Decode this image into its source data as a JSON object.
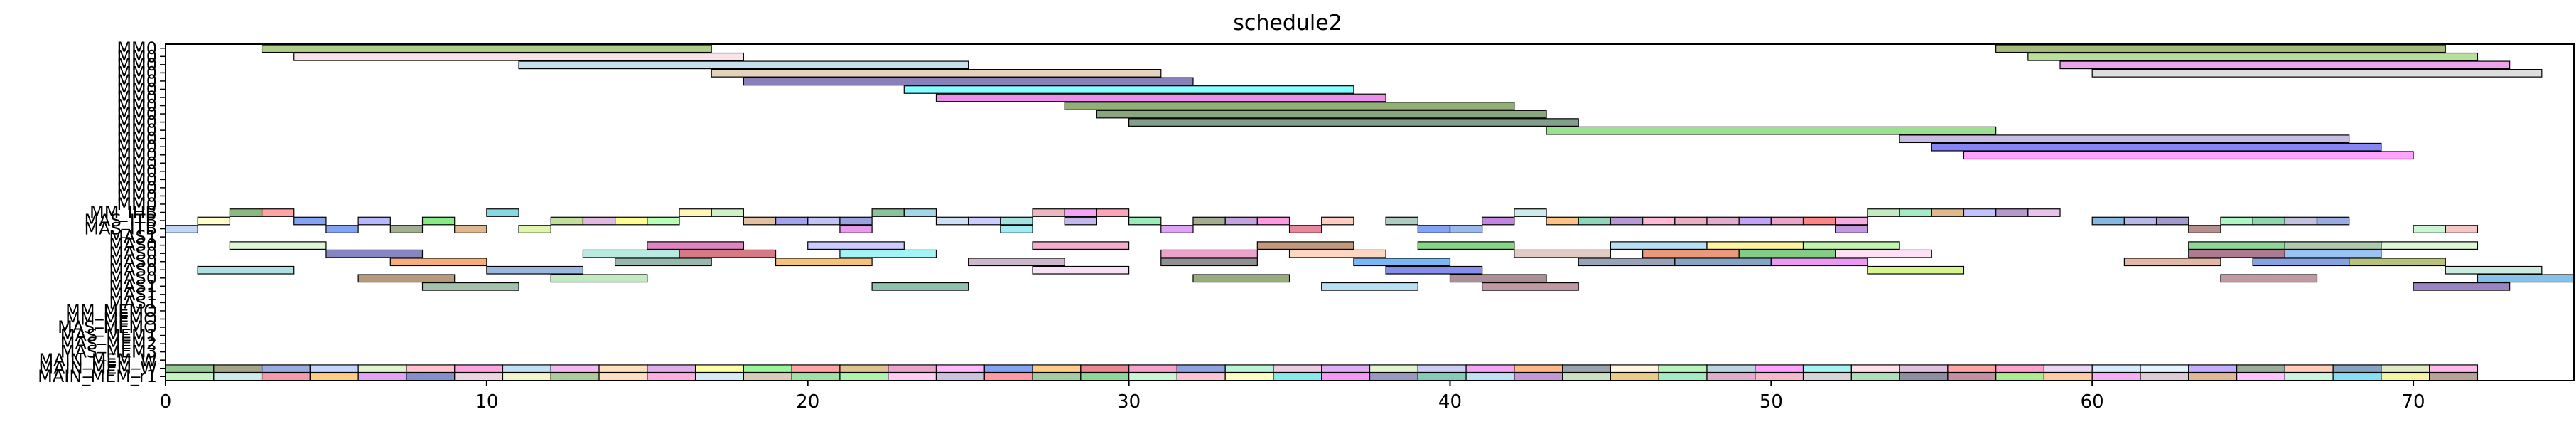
{
  "chart_data": {
    "type": "gantt",
    "title": "schedule2",
    "xlabel": "",
    "ylabel": "",
    "xlim": [
      0,
      75
    ],
    "xticks": [
      "0",
      "10",
      "20",
      "30",
      "40",
      "50",
      "60",
      "70"
    ],
    "grid": false,
    "rows": [
      "MM0",
      "MM0",
      "MM0",
      "MM0",
      "MM0",
      "MM0",
      "MM0",
      "MM0",
      "MM0",
      "MM0",
      "MM0",
      "MM0",
      "MM0",
      "MM0",
      "MM0",
      "MM0",
      "MM0",
      "MM0",
      "MM0",
      "MM0",
      "MM_IHB",
      "MAS_ITB",
      "MAS_ITB",
      "MAS1",
      "MAS0",
      "MAS0",
      "MAS0",
      "MAS0",
      "MAS0",
      "MAS1",
      "MAS1",
      "MAS1",
      "MM_MEMO",
      "MM_MEMO",
      "MAS_MEMO",
      "MAS_MEM1",
      "MAS_MEM2",
      "MAS_MEM3",
      "MAIN_MEM_W",
      "MAIN_MEM_W",
      "MAIN_MEM_r1"
    ],
    "ytick_labels": [
      "MM0",
      "MM0",
      "MM0",
      "MM0",
      "MM0",
      "MM0",
      "MM0",
      "MM0",
      "MM0",
      "MM0",
      "MM0",
      "MM0",
      "MM0",
      "MM0",
      "MM0",
      "MM0",
      "MM0",
      "MM0",
      "MM0",
      "MM0",
      "MM_IHB",
      "MAS_ITB",
      "MAS_ITB",
      "MAS1",
      "MAS0",
      "MAS0",
      "MAS0",
      "MAS0",
      "MAS0",
      "MAS1",
      "MAS1",
      "MAS1",
      "MM_MEMO",
      "MM_MEMO",
      "MAS_MEMO",
      "MAS_MEM1",
      "MAS_MEM2",
      "MAS_MEM3",
      "MAIN_MEM_W",
      "MAIN_MEM_W",
      "MAIN_MEM_r1"
    ],
    "bars": [
      {
        "row": 0,
        "start": 3,
        "end": 17,
        "color": "#7aaa3a"
      },
      {
        "row": 0,
        "start": 57,
        "end": 71,
        "color": "#6b8e23"
      },
      {
        "row": 1,
        "start": 4,
        "end": 18,
        "color": "#f5d0d8"
      },
      {
        "row": 1,
        "start": 58,
        "end": 72,
        "color": "#88cc55"
      },
      {
        "row": 2,
        "start": 11,
        "end": 25,
        "color": "#9ecae1"
      },
      {
        "row": 2,
        "start": 59,
        "end": 73,
        "color": "#e066e0"
      },
      {
        "row": 3,
        "start": 17,
        "end": 31,
        "color": "#d2b48c"
      },
      {
        "row": 3,
        "start": 60,
        "end": 74,
        "color": "#c8c8c8"
      },
      {
        "row": 4,
        "start": 18,
        "end": 32,
        "color": "#3b2a8a"
      },
      {
        "row": 5,
        "start": 23,
        "end": 37,
        "color": "#33ffff"
      },
      {
        "row": 6,
        "start": 24,
        "end": 38,
        "color": "#dd44dd"
      },
      {
        "row": 7,
        "start": 28,
        "end": 42,
        "color": "#4a7a1e"
      },
      {
        "row": 8,
        "start": 29,
        "end": 43,
        "color": "#3d6b2a"
      },
      {
        "row": 9,
        "start": 30,
        "end": 44,
        "color": "#2f5f3f"
      },
      {
        "row": 10,
        "start": 43,
        "end": 57,
        "color": "#55cc44"
      },
      {
        "row": 11,
        "start": 54,
        "end": 68,
        "color": "#a58fd0"
      },
      {
        "row": 12,
        "start": 55,
        "end": 69,
        "color": "#3333ee"
      },
      {
        "row": 13,
        "start": 56,
        "end": 70,
        "color": "#ff66ff"
      },
      {
        "row": 20,
        "start": 2,
        "end": 3,
        "color": "#3a8a2a"
      },
      {
        "row": 20,
        "start": 3,
        "end": 4,
        "color": "#ff6666"
      },
      {
        "row": 20,
        "start": 10,
        "end": 11,
        "color": "#33c0d0"
      },
      {
        "row": 20,
        "start": 16,
        "end": 17,
        "color": "#ffee88"
      },
      {
        "row": 20,
        "start": 17,
        "end": 18,
        "color": "#b0e8a0"
      },
      {
        "row": 20,
        "start": 22,
        "end": 23,
        "color": "#3a9a5a"
      },
      {
        "row": 20,
        "start": 23,
        "end": 24,
        "color": "#66bbdd"
      },
      {
        "row": 20,
        "start": 27,
        "end": 28,
        "color": "#dd8899"
      },
      {
        "row": 20,
        "start": 28,
        "end": 29,
        "color": "#ee66ee"
      },
      {
        "row": 20,
        "start": 29,
        "end": 30,
        "color": "#ff6688"
      },
      {
        "row": 20,
        "start": 42,
        "end": 43,
        "color": "#aadddd"
      },
      {
        "row": 20,
        "start": 53,
        "end": 54,
        "color": "#99dd99"
      },
      {
        "row": 20,
        "start": 54,
        "end": 55,
        "color": "#66dd99"
      },
      {
        "row": 20,
        "start": 55,
        "end": 56,
        "color": "#cc8844"
      },
      {
        "row": 20,
        "start": 56,
        "end": 57,
        "color": "#9999ff"
      },
      {
        "row": 20,
        "start": 57,
        "end": 58,
        "color": "#8855aa"
      },
      {
        "row": 20,
        "start": 58,
        "end": 59,
        "color": "#dd99dd"
      },
      {
        "row": 21,
        "start": 1,
        "end": 2,
        "color": "#ffffaa"
      },
      {
        "row": 21,
        "start": 4,
        "end": 5,
        "color": "#3366ee"
      },
      {
        "row": 21,
        "start": 6,
        "end": 7,
        "color": "#8888ff"
      },
      {
        "row": 21,
        "start": 8,
        "end": 9,
        "color": "#33dd33"
      },
      {
        "row": 21,
        "start": 12,
        "end": 13,
        "color": "#99cc55"
      },
      {
        "row": 21,
        "start": 13,
        "end": 14,
        "color": "#cc88cc"
      },
      {
        "row": 21,
        "start": 14,
        "end": 15,
        "color": "#ffff44"
      },
      {
        "row": 21,
        "start": 15,
        "end": 16,
        "color": "#88ff88"
      },
      {
        "row": 21,
        "start": 18,
        "end": 19,
        "color": "#cc9966"
      },
      {
        "row": 21,
        "start": 19,
        "end": 20,
        "color": "#6666dd"
      },
      {
        "row": 21,
        "start": 20,
        "end": 21,
        "color": "#9999ee"
      },
      {
        "row": 21,
        "start": 21,
        "end": 22,
        "color": "#5566cc"
      },
      {
        "row": 21,
        "start": 24,
        "end": 25,
        "color": "#aaccee"
      },
      {
        "row": 21,
        "start": 25,
        "end": 26,
        "color": "#aaaaff"
      },
      {
        "row": 21,
        "start": 26,
        "end": 27,
        "color": "#66cccc"
      },
      {
        "row": 21,
        "start": 28,
        "end": 29,
        "color": "#9988dd"
      },
      {
        "row": 21,
        "start": 30,
        "end": 31,
        "color": "#55dd88"
      },
      {
        "row": 21,
        "start": 32,
        "end": 33,
        "color": "#667744"
      },
      {
        "row": 21,
        "start": 33,
        "end": 34,
        "color": "#9966cc"
      },
      {
        "row": 21,
        "start": 34,
        "end": 35,
        "color": "#ff55cc"
      },
      {
        "row": 21,
        "start": 36,
        "end": 37,
        "color": "#ffaa99"
      },
      {
        "row": 21,
        "start": 38,
        "end": 39,
        "color": "#77aa99"
      },
      {
        "row": 21,
        "start": 41,
        "end": 42,
        "color": "#9933cc"
      },
      {
        "row": 21,
        "start": 43,
        "end": 44,
        "color": "#ff9933"
      },
      {
        "row": 21,
        "start": 44,
        "end": 45,
        "color": "#44bb88"
      },
      {
        "row": 21,
        "start": 45,
        "end": 46,
        "color": "#8855bb"
      },
      {
        "row": 21,
        "start": 46,
        "end": 47,
        "color": "#ff88bb"
      },
      {
        "row": 21,
        "start": 47,
        "end": 48,
        "color": "#dd7799"
      },
      {
        "row": 21,
        "start": 48,
        "end": 49,
        "color": "#cc77aa"
      },
      {
        "row": 21,
        "start": 49,
        "end": 50,
        "color": "#9966ee"
      },
      {
        "row": 21,
        "start": 50,
        "end": 51,
        "color": "#dd66aa"
      },
      {
        "row": 21,
        "start": 51,
        "end": 52,
        "color": "#ff3333"
      },
      {
        "row": 21,
        "start": 52,
        "end": 53,
        "color": "#ee77cc"
      },
      {
        "row": 21,
        "start": 60,
        "end": 61,
        "color": "#3388cc"
      },
      {
        "row": 21,
        "start": 61,
        "end": 62,
        "color": "#8888dd"
      },
      {
        "row": 21,
        "start": 62,
        "end": 63,
        "color": "#6655aa"
      },
      {
        "row": 21,
        "start": 64,
        "end": 65,
        "color": "#77ee99"
      },
      {
        "row": 21,
        "start": 65,
        "end": 66,
        "color": "#44bb77"
      },
      {
        "row": 21,
        "start": 66,
        "end": 67,
        "color": "#9999cc"
      },
      {
        "row": 21,
        "start": 67,
        "end": 68,
        "color": "#5577cc"
      },
      {
        "row": 22,
        "start": 0,
        "end": 1,
        "color": "#99bbee"
      },
      {
        "row": 22,
        "start": 5,
        "end": 6,
        "color": "#3366ee"
      },
      {
        "row": 22,
        "start": 7,
        "end": 8,
        "color": "#667744"
      },
      {
        "row": 22,
        "start": 9,
        "end": 10,
        "color": "#cc8844"
      },
      {
        "row": 22,
        "start": 11,
        "end": 12,
        "color": "#ccee77"
      },
      {
        "row": 22,
        "start": 21,
        "end": 22,
        "color": "#dd55dd"
      },
      {
        "row": 22,
        "start": 26,
        "end": 27,
        "color": "#66ddee"
      },
      {
        "row": 22,
        "start": 31,
        "end": 32,
        "color": "#cc66ee"
      },
      {
        "row": 22,
        "start": 35,
        "end": 36,
        "color": "#dd3355"
      },
      {
        "row": 22,
        "start": 39,
        "end": 40,
        "color": "#3366ee"
      },
      {
        "row": 22,
        "start": 40,
        "end": 41,
        "color": "#5588dd"
      },
      {
        "row": 22,
        "start": 52,
        "end": 53,
        "color": "#9955cc"
      },
      {
        "row": 22,
        "start": 63,
        "end": 64,
        "color": "#884444"
      },
      {
        "row": 22,
        "start": 70,
        "end": 71,
        "color": "#aaeebb"
      },
      {
        "row": 22,
        "start": 71,
        "end": 72,
        "color": "#f2a0a0"
      },
      {
        "row": 24,
        "start": 2,
        "end": 5,
        "color": "#ccf2bb"
      },
      {
        "row": 24,
        "start": 15,
        "end": 18,
        "color": "#cc3399"
      },
      {
        "row": 24,
        "start": 20,
        "end": 23,
        "color": "#aaaaff"
      },
      {
        "row": 24,
        "start": 27,
        "end": 30,
        "color": "#ee77aa"
      },
      {
        "row": 24,
        "start": 34,
        "end": 37,
        "color": "#995522"
      },
      {
        "row": 24,
        "start": 39,
        "end": 42,
        "color": "#33bb33"
      },
      {
        "row": 24,
        "start": 45,
        "end": 48,
        "color": "#88ccee"
      },
      {
        "row": 24,
        "start": 48,
        "end": 51,
        "color": "#ffee55"
      },
      {
        "row": 24,
        "start": 51,
        "end": 54,
        "color": "#99ee77"
      },
      {
        "row": 24,
        "start": 63,
        "end": 66,
        "color": "#44bb55"
      },
      {
        "row": 24,
        "start": 66,
        "end": 69,
        "color": "#77aa77"
      },
      {
        "row": 24,
        "start": 69,
        "end": 72,
        "color": "#ccf2bb"
      },
      {
        "row": 25,
        "start": 5,
        "end": 8,
        "color": "#333399"
      },
      {
        "row": 25,
        "start": 13,
        "end": 16,
        "color": "#88ddcc"
      },
      {
        "row": 25,
        "start": 16,
        "end": 19,
        "color": "#bb2233"
      },
      {
        "row": 25,
        "start": 21,
        "end": 24,
        "color": "#66eeee"
      },
      {
        "row": 25,
        "start": 31,
        "end": 34,
        "color": "#dd66aa"
      },
      {
        "row": 25,
        "start": 35,
        "end": 38,
        "color": "#ffbb99"
      },
      {
        "row": 25,
        "start": 42,
        "end": 45,
        "color": "#ccaa99"
      },
      {
        "row": 25,
        "start": 46,
        "end": 49,
        "color": "#dd5522"
      },
      {
        "row": 25,
        "start": 49,
        "end": 52,
        "color": "#33aa33"
      },
      {
        "row": 25,
        "start": 52,
        "end": 55,
        "color": "#ffccee"
      },
      {
        "row": 25,
        "start": 63,
        "end": 66,
        "color": "#772244"
      },
      {
        "row": 25,
        "start": 66,
        "end": 69,
        "color": "#5599ee"
      },
      {
        "row": 26,
        "start": 7,
        "end": 10,
        "color": "#ee7722"
      },
      {
        "row": 26,
        "start": 14,
        "end": 17,
        "color": "#558877"
      },
      {
        "row": 26,
        "start": 19,
        "end": 22,
        "color": "#ee9922"
      },
      {
        "row": 26,
        "start": 25,
        "end": 28,
        "color": "#aa88aa"
      },
      {
        "row": 26,
        "start": 31,
        "end": 34,
        "color": "#444444"
      },
      {
        "row": 26,
        "start": 37,
        "end": 40,
        "color": "#2288ee"
      },
      {
        "row": 26,
        "start": 44,
        "end": 47,
        "color": "#556688"
      },
      {
        "row": 26,
        "start": 47,
        "end": 50,
        "color": "#336699"
      },
      {
        "row": 26,
        "start": 50,
        "end": 53,
        "color": "#dd55ee"
      },
      {
        "row": 26,
        "start": 61,
        "end": 64,
        "color": "#cc8866"
      },
      {
        "row": 26,
        "start": 65,
        "end": 68,
        "color": "#3366cc"
      },
      {
        "row": 26,
        "start": 68,
        "end": 71,
        "color": "#889922"
      },
      {
        "row": 27,
        "start": 1,
        "end": 4,
        "color": "#77cccc"
      },
      {
        "row": 27,
        "start": 10,
        "end": 13,
        "color": "#5588cc"
      },
      {
        "row": 27,
        "start": 27,
        "end": 30,
        "color": "#eeccee"
      },
      {
        "row": 27,
        "start": 38,
        "end": 41,
        "color": "#3344dd"
      },
      {
        "row": 27,
        "start": 53,
        "end": 56,
        "color": "#bbee44"
      },
      {
        "row": 27,
        "start": 71,
        "end": 74,
        "color": "#aaddcc"
      },
      {
        "row": 28,
        "start": 6,
        "end": 9,
        "color": "#885522"
      },
      {
        "row": 28,
        "start": 12,
        "end": 15,
        "color": "#99dd99"
      },
      {
        "row": 28,
        "start": 32,
        "end": 35,
        "color": "#557722"
      },
      {
        "row": 28,
        "start": 40,
        "end": 43,
        "color": "#774455"
      },
      {
        "row": 28,
        "start": 64,
        "end": 67,
        "color": "#995566"
      },
      {
        "row": 28,
        "start": 72,
        "end": 75,
        "color": "#3399dd"
      },
      {
        "row": 29,
        "start": 8,
        "end": 11,
        "color": "#669977"
      },
      {
        "row": 29,
        "start": 22,
        "end": 25,
        "color": "#449977"
      },
      {
        "row": 29,
        "start": 36,
        "end": 39,
        "color": "#88ccee"
      },
      {
        "row": 29,
        "start": 41,
        "end": 44,
        "color": "#995566"
      },
      {
        "row": 29,
        "start": 70,
        "end": 73,
        "color": "#553399"
      }
    ],
    "mem_rows": [
      {
        "row": 39,
        "colors": [
          "#4aa24a",
          "#666633",
          "#5577cc",
          "#99bbff",
          "#cceeaa",
          "#ff99aa",
          "#ff66cc",
          "#99ccee",
          "#ee88ee",
          "#ffcc88",
          "#cc77dd",
          "#ffff66",
          "#55ee55",
          "#ff6666",
          "#cc9944",
          "#dd66aa",
          "#ff88ff",
          "#3366ee",
          "#ffaa33",
          "#dd3344",
          "#ee66aa",
          "#4466cc",
          "#88eebb",
          "#ddaacc",
          "#cc77ee",
          "#cceeaa",
          "#aaaaee",
          "#ee66ee",
          "#ff8833",
          "#556677",
          "#ffeecc",
          "#88ee88",
          "#88bbcc",
          "#ff66ff",
          "#66eeee",
          "#ffccdd",
          "#cc99cc",
          "#ff6666",
          "#ff66aa",
          "#ddbbee",
          "#bbddff",
          "#cceeff",
          "#9977ff",
          "#557755",
          "#ffaa88",
          "#336699",
          "#ccdd99",
          "#ff88dd"
        ]
      },
      {
        "row": 40,
        "colors": [
          "#99ee99",
          "#aadddd",
          "#ee5577",
          "#ffaa33",
          "#cc66ee",
          "#3344aa",
          "#ddbbcc",
          "#eeeeaa",
          "#77aa55",
          "#ffcc99",
          "#ff77cc",
          "#bbddee",
          "#bbaa88",
          "#66cc66",
          "#77ee77",
          "#ffaaee",
          "#aa99cc",
          "#ff5566",
          "#66aa66",
          "#44bb55",
          "#aaeebb",
          "#ff99bb",
          "#ffff99",
          "#33dddd",
          "#ee55ee",
          "#555599",
          "#33aa88",
          "#99ccee",
          "#9955bb",
          "#aacc99",
          "#ddaa33",
          "#66dd99",
          "#cc77aa",
          "#ee88aa",
          "#bbbbbb",
          "#77cc88",
          "#444466",
          "#994466",
          "#77dd44",
          "#ffaa66",
          "#ee77ee",
          "#ccaabb",
          "#cc8855",
          "#ff99ff",
          "#aaeecc",
          "#33ccee",
          "#eeee66",
          "#886655"
        ]
      }
    ]
  }
}
